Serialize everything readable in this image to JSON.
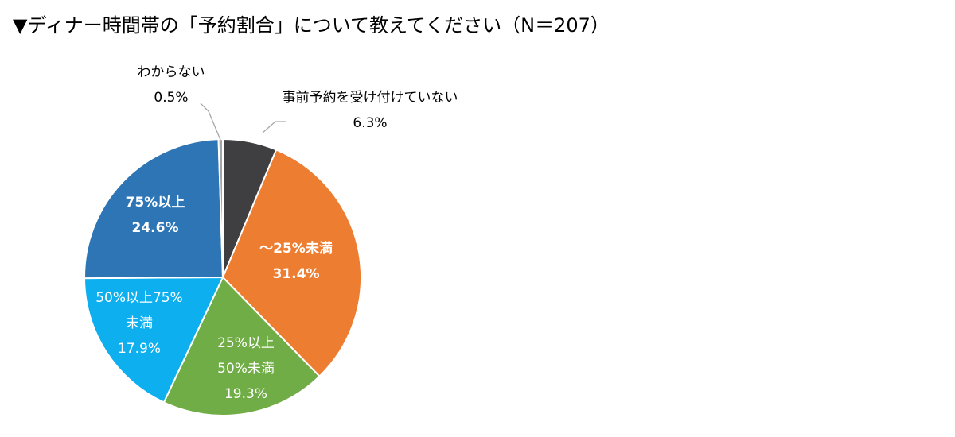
{
  "title": "▼ディナー時間帯の「予約割合」について教えてください（N＝207）",
  "chart_data": {
    "type": "pie",
    "title": "▼ディナー時間帯の「予約割合」について教えてください（N＝207）",
    "start_angle_deg": 0,
    "direction": "clockwise",
    "unit": "%",
    "slices": [
      {
        "label": [
          "事前予約を受け付けていない"
        ],
        "value": 6.3,
        "value_label": "6.3%",
        "color": "#3f3e40",
        "label_placement": "outside",
        "label_color": "#000000",
        "bold": false
      },
      {
        "label": [
          "～25%未満"
        ],
        "value": 31.4,
        "value_label": "31.4%",
        "color": "#ed7d31",
        "label_placement": "inside",
        "label_color": "#ffffff",
        "bold": true
      },
      {
        "label": [
          "25%以上",
          "50%未満"
        ],
        "value": 19.3,
        "value_label": "19.3%",
        "color": "#70ad47",
        "label_placement": "inside",
        "label_color": "#ffffff",
        "bold": false
      },
      {
        "label": [
          "50%以上75%",
          "未満"
        ],
        "value": 17.9,
        "value_label": "17.9%",
        "color": "#0eafef",
        "label_placement": "inside",
        "label_color": "#ffffff",
        "bold": false
      },
      {
        "label": [
          "75%以上"
        ],
        "value": 24.6,
        "value_label": "24.6%",
        "color": "#2e75b6",
        "label_placement": "inside",
        "label_color": "#ffffff",
        "bold": true
      },
      {
        "label": [
          "わからない"
        ],
        "value": 0.5,
        "value_label": "0.5%",
        "color": "#a5a5a5",
        "label_placement": "outside",
        "label_color": "#000000",
        "bold": false
      }
    ]
  }
}
